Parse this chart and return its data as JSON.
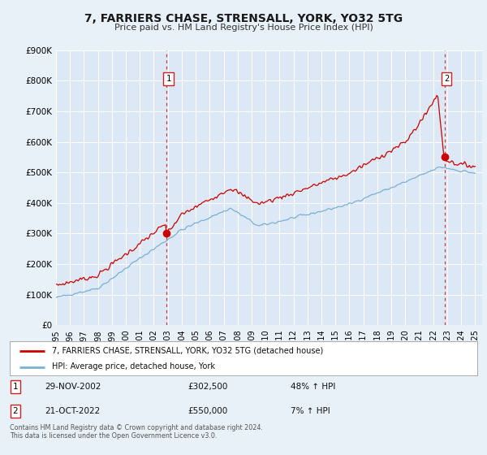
{
  "title": "7, FARRIERS CHASE, STRENSALL, YORK, YO32 5TG",
  "subtitle": "Price paid vs. HM Land Registry's House Price Index (HPI)",
  "background_color": "#e8f0f8",
  "plot_bg_color": "#dce8f5",
  "red_color": "#cc0000",
  "blue_color": "#7ab0d4",
  "ylim": [
    0,
    900000
  ],
  "xlim_start": 1995.0,
  "xlim_end": 2025.5,
  "sale1_x": 2002.91,
  "sale1_y": 302500,
  "sale2_x": 2022.8,
  "sale2_y": 550000,
  "legend_label_red": "7, FARRIERS CHASE, STRENSALL, YORK, YO32 5TG (detached house)",
  "legend_label_blue": "HPI: Average price, detached house, York",
  "sale1_date": "29-NOV-2002",
  "sale1_price": "£302,500",
  "sale1_hpi": "48% ↑ HPI",
  "sale2_date": "21-OCT-2022",
  "sale2_price": "£550,000",
  "sale2_hpi": "7% ↑ HPI",
  "footer": "Contains HM Land Registry data © Crown copyright and database right 2024.\nThis data is licensed under the Open Government Licence v3.0.",
  "ytick_labels": [
    "£0",
    "£100K",
    "£200K",
    "£300K",
    "£400K",
    "£500K",
    "£600K",
    "£700K",
    "£800K",
    "£900K"
  ],
  "ytick_vals": [
    0,
    100000,
    200000,
    300000,
    400000,
    500000,
    600000,
    700000,
    800000,
    900000
  ],
  "xticks": [
    1995,
    1996,
    1997,
    1998,
    1999,
    2000,
    2001,
    2002,
    2003,
    2004,
    2005,
    2006,
    2007,
    2008,
    2009,
    2010,
    2011,
    2012,
    2013,
    2014,
    2015,
    2016,
    2017,
    2018,
    2019,
    2020,
    2021,
    2022,
    2023,
    2024,
    2025
  ]
}
